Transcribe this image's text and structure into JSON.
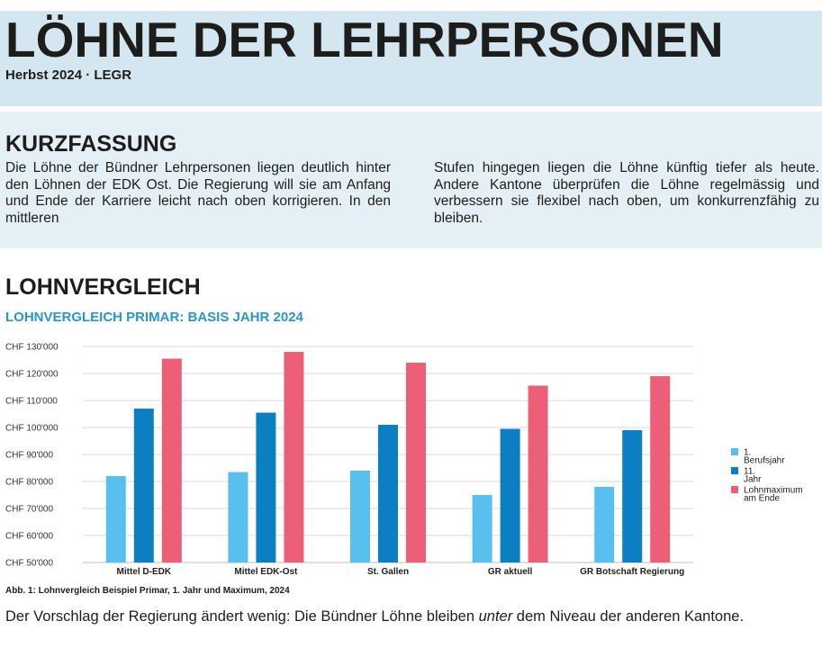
{
  "header": {
    "title": "LÖHNE DER LEHRPERSONEN",
    "subtitle": "Herbst 2024 · LEGR"
  },
  "summary": {
    "heading": "KURZFASSUNG",
    "left_text": "Die Löhne der Bündner Lehrpersonen liegen deutlich hinter den Löhnen der EDK Ost. Die Regierung will sie am Anfang und Ende der Karriere leicht nach oben korrigieren. In den mittleren",
    "right_text": "Stufen hingegen liegen die Löhne künftig tiefer als heute. Andere Kantone überprüfen die Löhne regelmässig und verbessern sie flexibel nach oben, um konkurrenzfähig zu bleiben."
  },
  "section": {
    "heading": "LOHNVERGLEICH"
  },
  "chart_data": {
    "type": "bar",
    "title": "LOHNVERGLEICH PRIMAR: BASIS JAHR 2024",
    "categories": [
      "Mittel D-EDK",
      "Mittel EDK-Ost",
      "St. Gallen",
      "GR aktuell",
      "GR Botschaft Regierung"
    ],
    "series": [
      {
        "name": "1. Berufsjahr",
        "color": "#58c0ee",
        "values": [
          82000,
          83500,
          84000,
          75000,
          78000
        ]
      },
      {
        "name": "11. Jahr",
        "color": "#0b7fc2",
        "values": [
          107000,
          105500,
          101000,
          99500,
          99000
        ]
      },
      {
        "name": "Lohnmaximum am Ende",
        "color": "#ec5f76",
        "values": [
          125500,
          128000,
          124000,
          115500,
          119000
        ]
      }
    ],
    "ylim": [
      50000,
      130000
    ],
    "yticks": [
      {
        "value": 50000,
        "label": "CHF 50'000"
      },
      {
        "value": 60000,
        "label": "CHF 60'000"
      },
      {
        "value": 70000,
        "label": "CHF 70'000"
      },
      {
        "value": 80000,
        "label": "CHF 80'000"
      },
      {
        "value": 90000,
        "label": "CHF 90'000"
      },
      {
        "value": 100000,
        "label": "CHF 100'000"
      },
      {
        "value": 110000,
        "label": "CHF 110'000"
      },
      {
        "value": 120000,
        "label": "CHF 120'000"
      },
      {
        "value": 130000,
        "label": "CHF 130'000"
      }
    ],
    "grid": true,
    "legend_position": "right",
    "xlabel": "",
    "ylabel": ""
  },
  "caption": "Abb. 1: Lohnvergleich Beispiel Primar, 1. Jahr und Maximum, 2024",
  "conclusion": {
    "before": "Der Vorschlag der Regierung ändert wenig: Die Bündner Löhne bleiben ",
    "emphasis": "unter",
    "after": " dem Niveau der anderen Kantone."
  }
}
